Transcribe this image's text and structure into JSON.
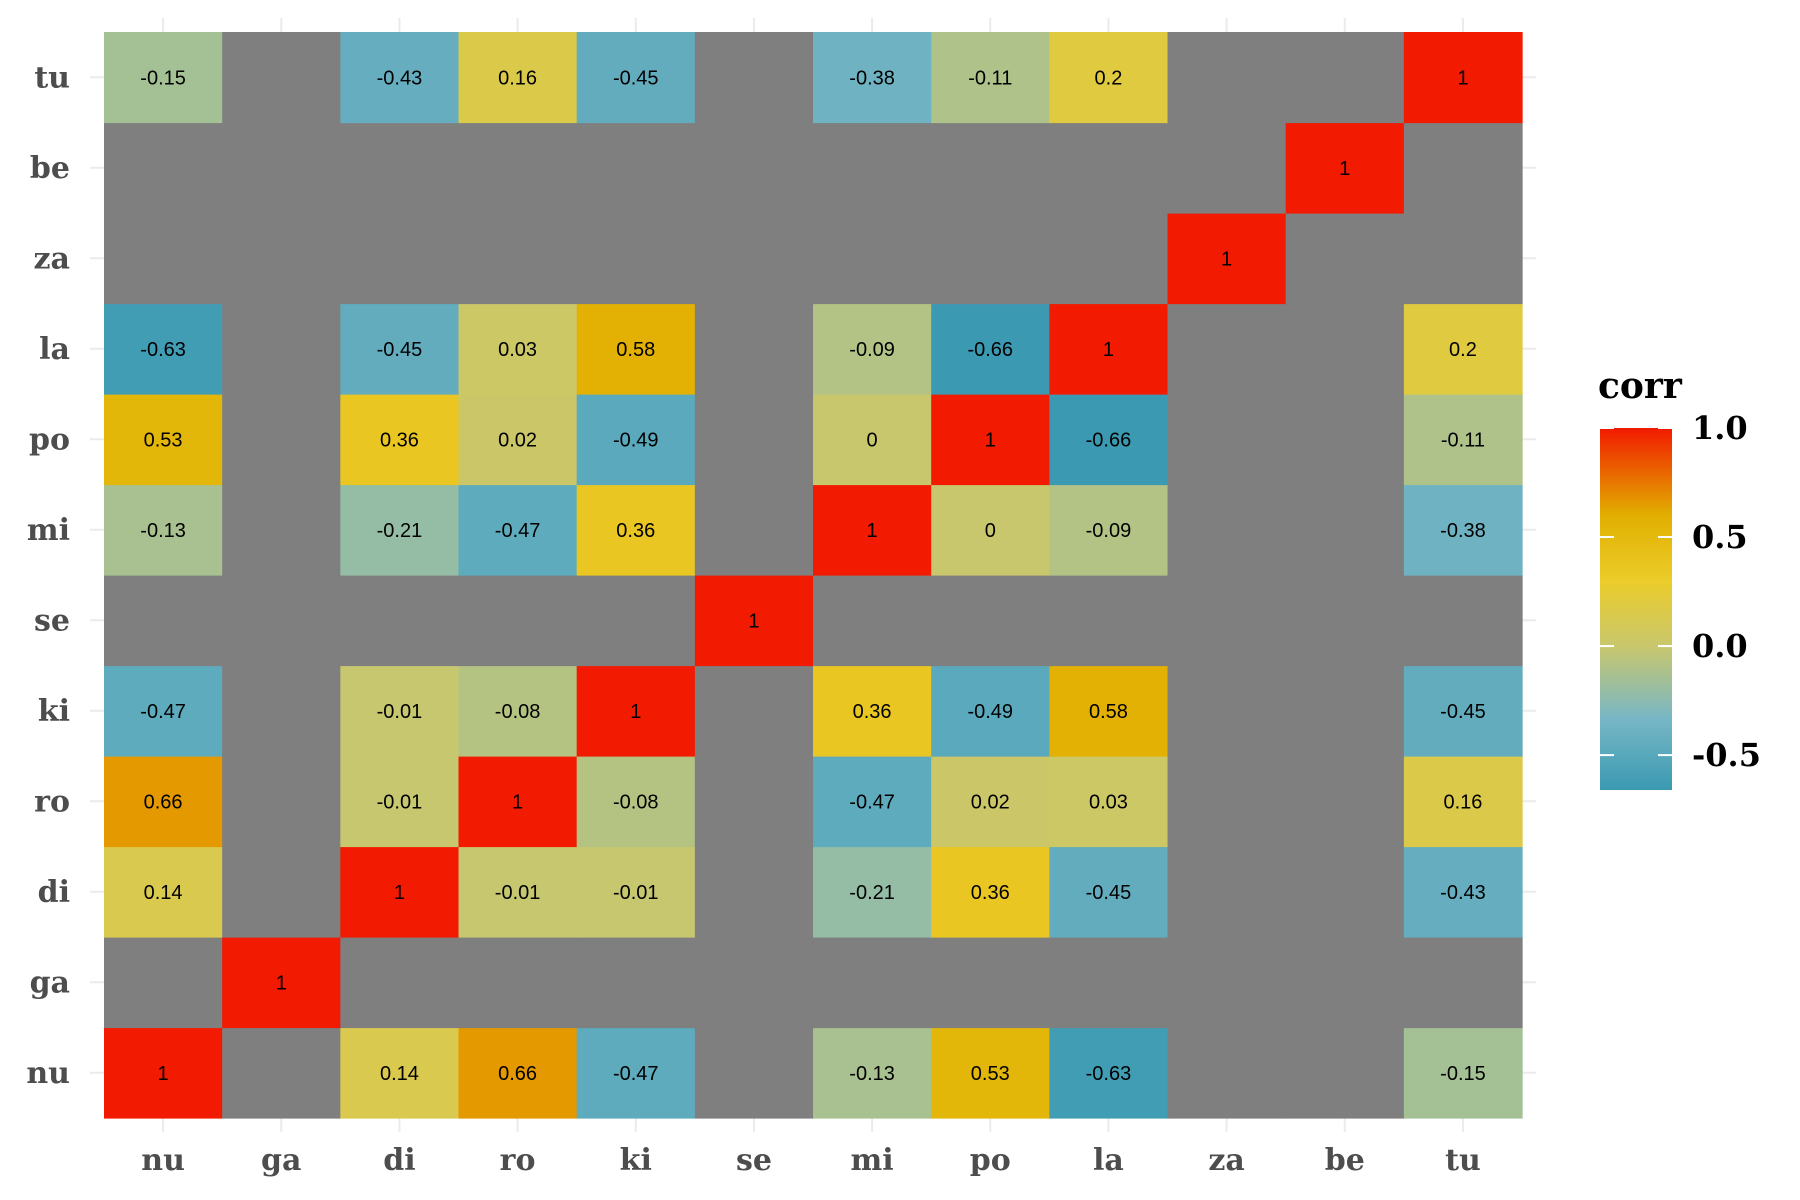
{
  "chart_data": {
    "type": "heatmap",
    "title": "",
    "xlabel": "",
    "ylabel": "",
    "x_categories": [
      "nu",
      "ga",
      "di",
      "ro",
      "ki",
      "se",
      "mi",
      "po",
      "la",
      "za",
      "be",
      "tu"
    ],
    "y_categories": [
      "nu",
      "ga",
      "di",
      "ro",
      "ki",
      "se",
      "mi",
      "po",
      "la",
      "za",
      "be",
      "tu"
    ],
    "values": [
      [
        1,
        null,
        0.14,
        0.66,
        -0.47,
        null,
        -0.13,
        0.53,
        -0.63,
        null,
        null,
        -0.15
      ],
      [
        null,
        1,
        null,
        null,
        null,
        null,
        null,
        null,
        null,
        null,
        null,
        null
      ],
      [
        0.14,
        null,
        1,
        -0.01,
        -0.01,
        null,
        -0.21,
        0.36,
        -0.45,
        null,
        null,
        -0.43
      ],
      [
        0.66,
        null,
        -0.01,
        1,
        -0.08,
        null,
        -0.47,
        0.02,
        0.03,
        null,
        null,
        0.16
      ],
      [
        -0.47,
        null,
        -0.01,
        -0.08,
        1,
        null,
        0.36,
        -0.49,
        0.58,
        null,
        null,
        -0.45
      ],
      [
        null,
        null,
        null,
        null,
        null,
        1,
        null,
        null,
        null,
        null,
        null,
        null
      ],
      [
        -0.13,
        null,
        -0.21,
        -0.47,
        0.36,
        null,
        1,
        0,
        -0.09,
        null,
        null,
        -0.38
      ],
      [
        0.53,
        null,
        0.36,
        0.02,
        -0.49,
        null,
        0,
        1,
        -0.66,
        null,
        null,
        -0.11
      ],
      [
        -0.63,
        null,
        -0.45,
        0.03,
        0.58,
        null,
        -0.09,
        -0.66,
        1,
        null,
        null,
        0.2
      ],
      [
        null,
        null,
        null,
        null,
        null,
        null,
        null,
        null,
        null,
        1,
        null,
        null
      ],
      [
        null,
        null,
        null,
        null,
        null,
        null,
        null,
        null,
        null,
        null,
        1,
        null
      ],
      [
        -0.15,
        null,
        -0.43,
        0.16,
        -0.45,
        null,
        -0.38,
        -0.11,
        0.2,
        null,
        null,
        1
      ]
    ],
    "missing_color": "#7f7f7f",
    "color_scale": {
      "domain": [
        -0.66,
        1.0
      ],
      "stops": [
        {
          "value": -0.66,
          "color": "#3b9ab2"
        },
        {
          "value": -0.33,
          "color": "#78b7c5"
        },
        {
          "value": 0.0,
          "color": "#c9c76d"
        },
        {
          "value": 0.3,
          "color": "#ebcc2a"
        },
        {
          "value": 0.6,
          "color": "#e1af00"
        },
        {
          "value": 1.0,
          "color": "#f21a00"
        }
      ]
    },
    "legend": {
      "title": "corr",
      "position": "right",
      "ticks": [
        1.0,
        0.5,
        0.0,
        -0.5
      ],
      "tick_labels": [
        "1.0",
        "0.5",
        "0.0",
        "-0.5"
      ]
    },
    "grid": true
  }
}
